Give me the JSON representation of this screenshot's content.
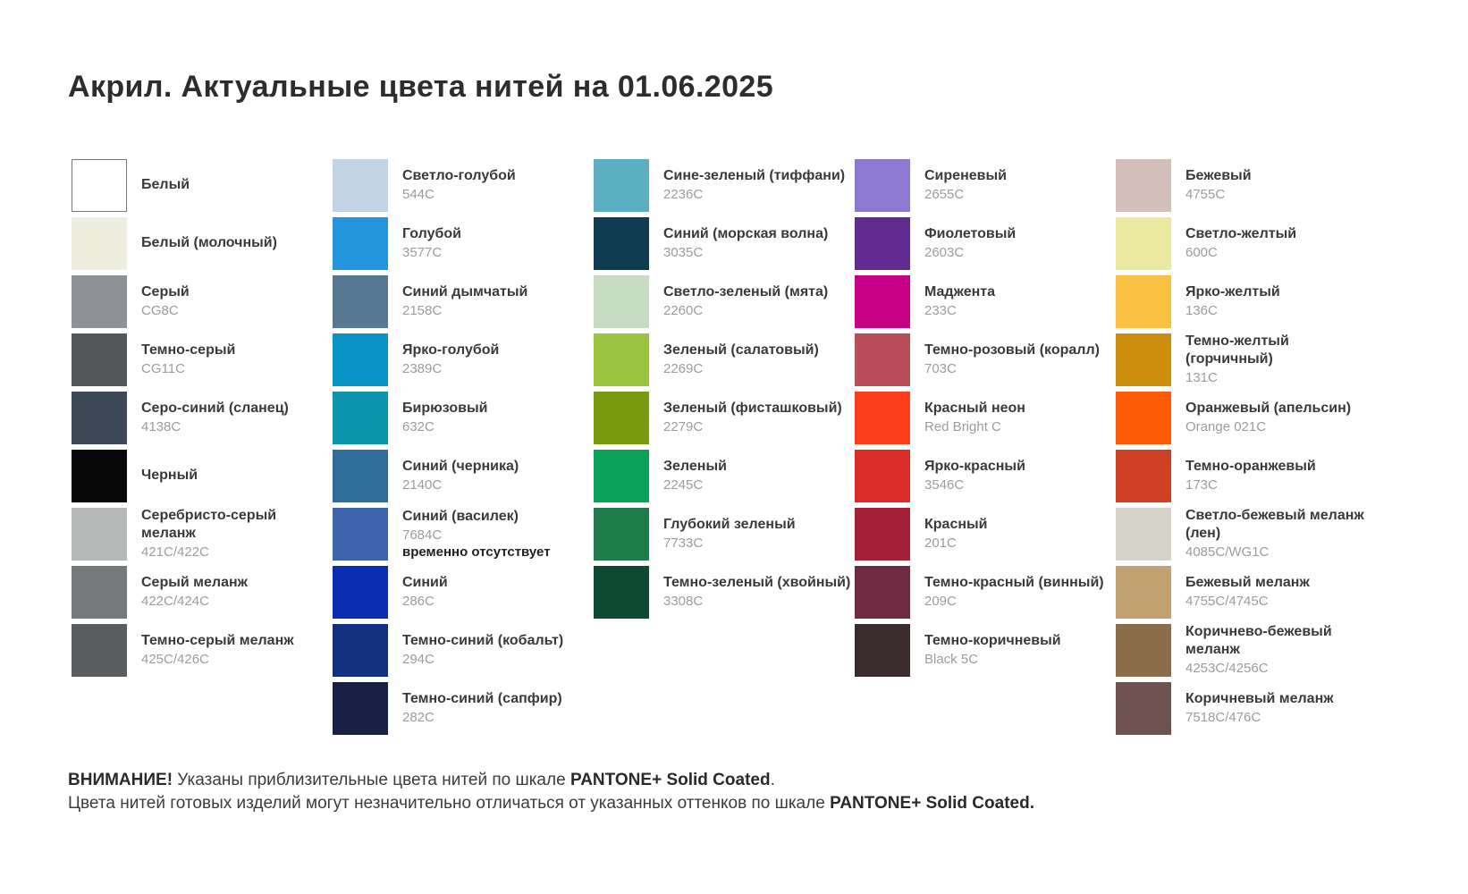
{
  "title": "Акрил. Актуальные цвета нитей на 01.06.2025",
  "columns": [
    {
      "items": [
        {
          "name": "Белый",
          "code": "",
          "color": "#ffffff",
          "border": true
        },
        {
          "name": "Белый (молочный)",
          "code": "",
          "color": "#edeedd"
        },
        {
          "name": "Серый",
          "code": "CG8C",
          "color": "#8e9296"
        },
        {
          "name": "Темно-серый",
          "code": "CG11C",
          "color": "#53575a"
        },
        {
          "name": "Серо-синий (сланец)",
          "code": "4138C",
          "color": "#3c4856"
        },
        {
          "name": "Черный",
          "code": "",
          "color": "#070708"
        },
        {
          "name": "Серебристо-серый\nмеланж",
          "code": "421C/422C",
          "color": "#b5b8b7"
        },
        {
          "name": "Серый меланж",
          "code": "422C/424C",
          "color": "#76797b"
        },
        {
          "name": "Темно-серый меланж",
          "code": "425C/426C",
          "color": "#5a5e61"
        }
      ]
    },
    {
      "items": [
        {
          "name": "Светло-голубой",
          "code": "544C",
          "color": "#c2d4e6"
        },
        {
          "name": "Голубой",
          "code": "3577C",
          "color": "#2295dc"
        },
        {
          "name": "Синий дымчатый",
          "code": "2158C",
          "color": "#567892"
        },
        {
          "name": "Ярко-голубой",
          "code": "2389C",
          "color": "#0894c6"
        },
        {
          "name": "Бирюзовый",
          "code": "632C",
          "color": "#0a95ac"
        },
        {
          "name": "Синий (черника)",
          "code": "2140C",
          "color": "#2d6d97"
        },
        {
          "name": "Синий (василек)",
          "code": "7684C",
          "color": "#3d64ac",
          "note": "временно отсутствует"
        },
        {
          "name": "Синий",
          "code": "286C",
          "color": "#0b2db2"
        },
        {
          "name": "Темно-синий (кобальт)",
          "code": "294C",
          "color": "#12307d"
        },
        {
          "name": "Темно-синий (сапфир)",
          "code": "282C",
          "color": "#171f45"
        }
      ]
    },
    {
      "items": [
        {
          "name": "Сине-зеленый (тиффани)",
          "code": "2236C",
          "color": "#5bafc0"
        },
        {
          "name": "Синий (морская волна)",
          "code": "3035C",
          "color": "#0f3c50"
        },
        {
          "name": "Светло-зеленый (мята)",
          "code": "2260C",
          "color": "#c7dcc3"
        },
        {
          "name": "Зеленый (салатовый)",
          "code": "2269C",
          "color": "#9ac43e"
        },
        {
          "name": "Зеленый (фисташковый)",
          "code": "2279C",
          "color": "#799a0e"
        },
        {
          "name": "Зеленый",
          "code": "2245C",
          "color": "#0aa159"
        },
        {
          "name": "Глубокий зеленый",
          "code": "7733C",
          "color": "#1e7b4b"
        },
        {
          "name": "Темно-зеленый (хвойный)",
          "code": "3308C",
          "color": "#0e4a33"
        }
      ]
    },
    {
      "items": [
        {
          "name": "Сиреневый",
          "code": "2655C",
          "color": "#8d7ad0"
        },
        {
          "name": "Фиолетовый",
          "code": "2603C",
          "color": "#622b91"
        },
        {
          "name": "Маджента",
          "code": "233C",
          "color": "#c70087"
        },
        {
          "name": "Темно-розовый (коралл)",
          "code": "703C",
          "color": "#b74d57"
        },
        {
          "name": "Красный неон",
          "code": "Red Bright C",
          "color": "#fb3e1c"
        },
        {
          "name": "Ярко-красный",
          "code": "3546C",
          "color": "#da2c26"
        },
        {
          "name": "Красный",
          "code": "201C",
          "color": "#a42138"
        },
        {
          "name": "Темно-красный (винный)",
          "code": "209C",
          "color": "#702b43"
        },
        {
          "name": "Темно-коричневый",
          "code": "Black 5C",
          "color": "#3a2c2d"
        }
      ]
    },
    {
      "items": [
        {
          "name": "Бежевый",
          "code": "4755C",
          "color": "#d3c0bb"
        },
        {
          "name": "Светло-желтый",
          "code": "600C",
          "color": "#ebe9a0"
        },
        {
          "name": "Ярко-желтый",
          "code": "136C",
          "color": "#f9c142"
        },
        {
          "name": "Темно-желтый (горчичный)",
          "code": "131C",
          "color": "#cd8e0e"
        },
        {
          "name": "Оранжевый (апельсин)",
          "code": "Orange 021C",
          "color": "#fd5a05"
        },
        {
          "name": "Темно-оранжевый",
          "code": "173C",
          "color": "#ce4123"
        },
        {
          "name": "Светло-бежевый меланж (лен)",
          "code": "4085C/WG1C",
          "color": "#d6d3cb"
        },
        {
          "name": "Бежевый меланж",
          "code": "4755C/4745C",
          "color": "#c1a072"
        },
        {
          "name": "Коричнево-бежевый меланж",
          "code": "4253C/4256C",
          "color": "#8a6d4a"
        },
        {
          "name": "Коричневый меланж",
          "code": "7518C/476C",
          "color": "#6f5350"
        }
      ]
    }
  ],
  "footer": {
    "line1": [
      {
        "text": "ВНИМАНИЕ!",
        "bold": true
      },
      {
        "text": " Указаны приблизительные цвета нитей по шкале ",
        "bold": false
      },
      {
        "text": "PANTONE+ Solid Coated",
        "bold": true
      },
      {
        "text": ".",
        "bold": false
      }
    ],
    "line2": [
      {
        "text": "Цвета нитей готовых изделий могут незначительно отличаться от указанных оттенков по шкале ",
        "bold": false
      },
      {
        "text": "PANTONE+ Solid Coated.",
        "bold": true
      }
    ]
  }
}
